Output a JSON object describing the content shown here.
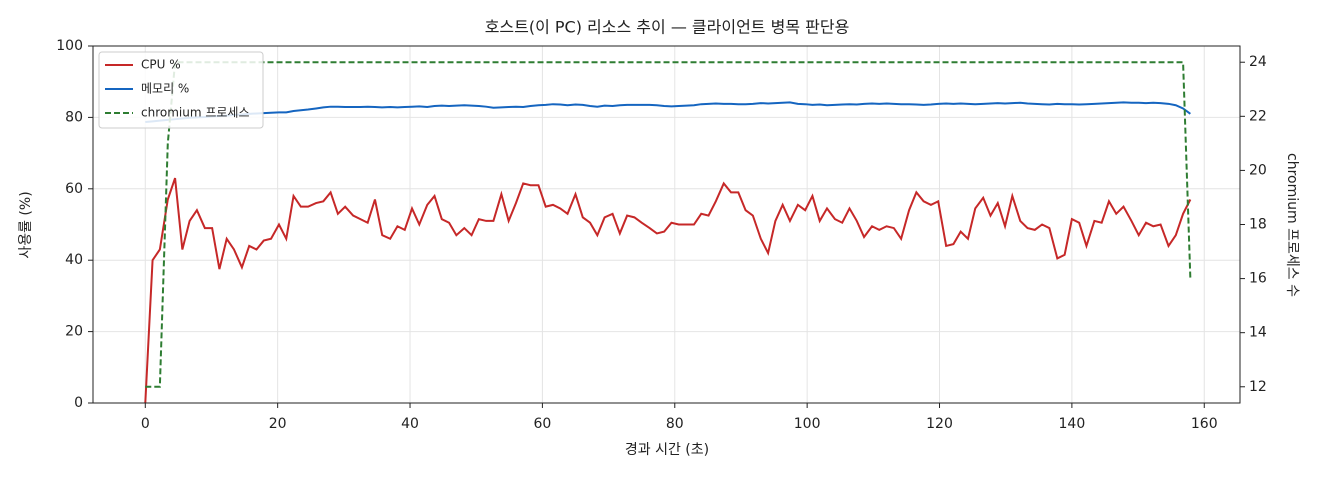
{
  "chart_data": {
    "type": "line",
    "title": "호스트(이 PC) 리소스 추이 — 클라이언트 병목 판단용",
    "x_label": "경과 시간 (초)",
    "y_label": "사용률 (%)",
    "y2_label": "chromium 프로세스 수",
    "x": [
      0,
      1.1,
      2.2,
      3.4,
      4.5,
      5.6,
      6.7,
      7.8,
      9.0,
      10.1,
      11.2,
      12.3,
      13.4,
      14.6,
      15.7,
      16.8,
      17.9,
      19.0,
      20.2,
      21.3,
      22.4,
      23.5,
      24.6,
      25.8,
      26.9,
      28.0,
      29.1,
      30.2,
      31.4,
      32.5,
      33.6,
      34.7,
      35.8,
      37.0,
      38.1,
      39.2,
      40.3,
      41.4,
      42.6,
      43.7,
      44.8,
      45.9,
      47.0,
      48.2,
      49.3,
      50.4,
      51.5,
      52.6,
      53.8,
      54.9,
      56.0,
      57.1,
      58.2,
      59.4,
      60.5,
      61.6,
      62.7,
      63.8,
      65.0,
      66.1,
      67.2,
      68.3,
      69.4,
      70.6,
      71.7,
      72.8,
      73.9,
      75.0,
      76.2,
      77.3,
      78.4,
      79.5,
      80.6,
      81.8,
      82.9,
      84.0,
      85.1,
      86.2,
      87.4,
      88.5,
      89.6,
      90.7,
      91.8,
      93.0,
      94.1,
      95.2,
      96.3,
      97.4,
      98.6,
      99.7,
      100.8,
      101.9,
      103.0,
      104.2,
      105.3,
      106.4,
      107.5,
      108.6,
      109.8,
      110.9,
      112.0,
      113.1,
      114.2,
      115.4,
      116.5,
      117.6,
      118.7,
      119.8,
      121.0,
      122.1,
      123.2,
      124.3,
      125.4,
      126.6,
      127.7,
      128.8,
      129.9,
      131.0,
      132.2,
      133.3,
      134.4,
      135.5,
      136.6,
      137.8,
      138.9,
      140.0,
      141.1,
      142.2,
      143.4,
      144.5,
      145.6,
      146.7,
      147.8,
      149.0,
      150.1,
      151.2,
      152.3,
      153.4,
      154.6,
      155.7,
      156.8,
      157.9
    ],
    "series": [
      {
        "name": "CPU %",
        "color": "#c62828",
        "linestyle": "solid",
        "values": [
          0,
          40,
          43,
          57,
          63,
          43,
          51,
          54,
          49,
          49,
          37.5,
          46,
          43,
          38,
          44,
          43,
          45.5,
          46,
          50,
          46,
          58,
          55,
          55,
          56,
          56.5,
          59,
          53,
          55,
          52.5,
          51.5,
          50.5,
          57,
          47,
          46,
          49.5,
          48.5,
          54.5,
          50,
          55.5,
          58,
          51.5,
          50.5,
          47,
          49,
          47,
          51.5,
          51,
          51,
          58.5,
          51,
          56,
          61.5,
          61,
          61,
          55,
          55.5,
          54.5,
          53,
          58.5,
          52,
          50.5,
          47,
          52,
          53,
          47.5,
          52.5,
          52,
          50.5,
          49,
          47.5,
          48,
          50.5,
          50,
          50,
          50,
          53,
          52.5,
          56.5,
          61.5,
          59,
          59,
          54,
          52.5,
          46,
          42,
          51,
          55.5,
          51,
          55.5,
          54,
          58,
          51,
          54.5,
          51.5,
          50.5,
          54.5,
          51,
          46.5,
          49.5,
          48.5,
          49.5,
          49,
          46,
          54,
          59,
          56.5,
          55.5,
          56.5,
          44,
          44.5,
          48,
          46,
          54.5,
          57.5,
          52.5,
          56,
          49.5,
          58,
          51,
          49,
          48.5,
          50,
          49,
          40.5,
          41.5,
          51.5,
          50.5,
          44,
          51,
          50.5,
          56.5,
          53,
          55,
          51,
          47,
          50.5,
          49.5,
          50,
          44,
          47,
          53,
          57
        ]
      },
      {
        "name": "메모리 %",
        "color": "#1565c0",
        "linestyle": "solid",
        "values": [
          78.7,
          78.9,
          79.1,
          79.3,
          79.5,
          79.7,
          79.9,
          80.0,
          80.1,
          80.3,
          80.4,
          80.5,
          80.7,
          80.8,
          81.0,
          81.1,
          81.2,
          81.3,
          81.4,
          81.4,
          81.8,
          82.0,
          82.2,
          82.5,
          82.8,
          83.0,
          83.0,
          82.9,
          82.9,
          82.9,
          83.0,
          82.9,
          82.8,
          82.9,
          82.8,
          82.9,
          83.0,
          83.1,
          82.9,
          83.2,
          83.3,
          83.2,
          83.3,
          83.4,
          83.3,
          83.2,
          83.0,
          82.7,
          82.8,
          82.9,
          83.0,
          82.9,
          83.2,
          83.4,
          83.5,
          83.7,
          83.6,
          83.4,
          83.6,
          83.5,
          83.2,
          83.0,
          83.3,
          83.2,
          83.4,
          83.5,
          83.5,
          83.5,
          83.5,
          83.4,
          83.2,
          83.1,
          83.2,
          83.3,
          83.4,
          83.7,
          83.8,
          83.9,
          83.8,
          83.8,
          83.7,
          83.7,
          83.8,
          84.0,
          83.9,
          84.0,
          84.1,
          84.2,
          83.8,
          83.7,
          83.5,
          83.6,
          83.4,
          83.5,
          83.6,
          83.7,
          83.6,
          83.8,
          83.9,
          83.8,
          83.9,
          83.8,
          83.7,
          83.7,
          83.6,
          83.5,
          83.6,
          83.8,
          83.9,
          83.8,
          83.9,
          83.8,
          83.7,
          83.8,
          83.9,
          84.0,
          83.9,
          84.0,
          84.1,
          83.9,
          83.8,
          83.7,
          83.6,
          83.8,
          83.7,
          83.7,
          83.6,
          83.7,
          83.8,
          83.9,
          84.0,
          84.1,
          84.2,
          84.1,
          84.1,
          84.0,
          84.1,
          84.0,
          83.8,
          83.4,
          82.5,
          81.0
        ]
      },
      {
        "name": "chromium 프로세스",
        "color": "#2e7d32",
        "linestyle": "dashed",
        "axis": "y2",
        "values": [
          12,
          12,
          12,
          21,
          24,
          24,
          24,
          24,
          24,
          24,
          24,
          24,
          24,
          24,
          24,
          24,
          24,
          24,
          24,
          24,
          24,
          24,
          24,
          24,
          24,
          24,
          24,
          24,
          24,
          24,
          24,
          24,
          24,
          24,
          24,
          24,
          24,
          24,
          24,
          24,
          24,
          24,
          24,
          24,
          24,
          24,
          24,
          24,
          24,
          24,
          24,
          24,
          24,
          24,
          24,
          24,
          24,
          24,
          24,
          24,
          24,
          24,
          24,
          24,
          24,
          24,
          24,
          24,
          24,
          24,
          24,
          24,
          24,
          24,
          24,
          24,
          24,
          24,
          24,
          24,
          24,
          24,
          24,
          24,
          24,
          24,
          24,
          24,
          24,
          24,
          24,
          24,
          24,
          24,
          24,
          24,
          24,
          24,
          24,
          24,
          24,
          24,
          24,
          24,
          24,
          24,
          24,
          24,
          24,
          24,
          24,
          24,
          24,
          24,
          24,
          24,
          24,
          24,
          24,
          24,
          24,
          24,
          24,
          24,
          24,
          24,
          24,
          24,
          24,
          24,
          24,
          24,
          24,
          24,
          24,
          24,
          24,
          24,
          24,
          24,
          24,
          16
        ]
      }
    ],
    "xlim": [
      -7.9,
      165.4
    ],
    "xticks": [
      0,
      20,
      40,
      60,
      80,
      100,
      120,
      140,
      160
    ],
    "ylim": [
      0,
      100
    ],
    "yticks": [
      0,
      20,
      40,
      60,
      80,
      100
    ],
    "y2lim": [
      11.4,
      24.6
    ],
    "y2ticks": [
      12,
      14,
      16,
      18,
      20,
      22,
      24
    ],
    "grid": true,
    "legend": "upper-left"
  }
}
